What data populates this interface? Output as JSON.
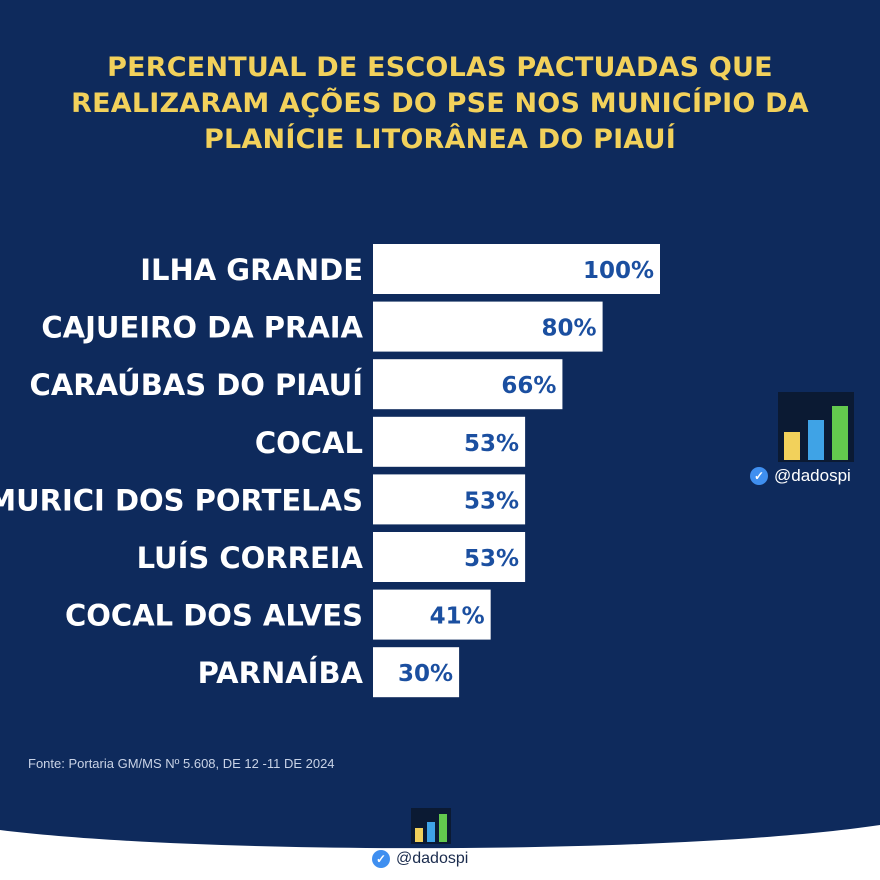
{
  "title_lines": [
    "PERCENTUAL DE ESCOLAS PACTUADAS QUE",
    "REALIZARAM AÇÕES DO PSE NOS MUNICÍPIO DA",
    "PLANÍCIE LITORÂNEA DO PIAUÍ"
  ],
  "source": "Fonte: Portaria GM/MS Nº 5.608, DE 12 -11 DE 2024",
  "brand": {
    "handle": "@dadospi",
    "verified_icon": "verified-check-icon",
    "logo_icon": "bar-chart-logo-icon"
  },
  "colors": {
    "background": "#0e2a5c",
    "title": "#f2d15b",
    "bar": "#ffffff",
    "value_text": "#1b4fa0",
    "label_text": "#ffffff",
    "logo_bars": [
      "#f2d15b",
      "#3fa3e6",
      "#63c94e"
    ]
  },
  "chart_data": {
    "type": "bar",
    "orientation": "horizontal",
    "categories": [
      "ILHA GRANDE",
      "CAJUEIRO DA PRAIA",
      "CARAÚBAS DO PIAUÍ",
      "COCAL",
      "MURICI DOS PORTELAS",
      "LUÍS CORREIA",
      "COCAL DOS ALVES",
      "PARNAÍBA"
    ],
    "values": [
      100,
      80,
      66,
      53,
      53,
      53,
      41,
      30
    ],
    "value_labels": [
      "100%",
      "80%",
      "66%",
      "53%",
      "53%",
      "53%",
      "41%",
      "30%"
    ],
    "unit": "%",
    "xlim": [
      0,
      100
    ],
    "grid": false,
    "legend": "none"
  }
}
